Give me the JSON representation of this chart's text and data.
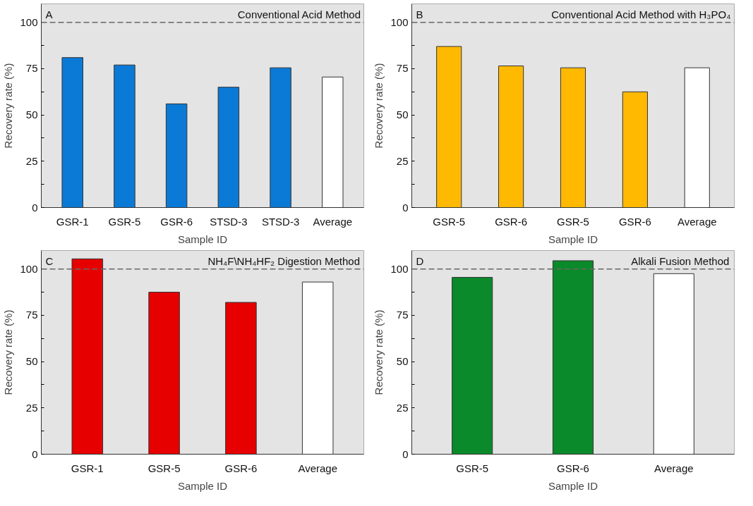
{
  "chart_data": [
    {
      "type": "bar",
      "title": "Conventional Acid Method",
      "annotations": [
        "A"
      ],
      "xlabel": "Sample ID",
      "ylabel": "Recovery rate (%)",
      "categories": [
        "GSR-1",
        "GSR-5",
        "GSR-6",
        "STSD-3",
        "STSD-3",
        "Average"
      ],
      "values": [
        81,
        77,
        56,
        65,
        75.5,
        70.5
      ],
      "colors": [
        "#0a7ad6",
        "#0a7ad6",
        "#0a7ad6",
        "#0a7ad6",
        "#0a7ad6",
        "#ffffff"
      ],
      "ylim": [
        0,
        110
      ],
      "yticks": [
        0,
        {
          "value": 12.5,
          "label": null
        },
        25,
        {
          "value": 37.5,
          "label": null
        },
        50,
        {
          "value": 62.5,
          "label": null
        },
        75,
        {
          "value": 87.5,
          "label": null
        },
        100
      ],
      "ref_lines": [
        {
          "axis": "y",
          "value": 100,
          "label": null,
          "color": "#666666",
          "line_style": "dashed"
        }
      ],
      "grid": false
    },
    {
      "type": "bar",
      "title": "Conventional Acid Method with H₃PO₄",
      "annotations": [
        "B"
      ],
      "xlabel": "Sample ID",
      "ylabel": "Recovery rate (%)",
      "categories": [
        "GSR-5",
        "GSR-6",
        "GSR-5",
        "GSR-6",
        "Average"
      ],
      "values": [
        87,
        76.5,
        75.5,
        62.5,
        75.5
      ],
      "colors": [
        "#ffb900",
        "#ffb900",
        "#ffb900",
        "#ffb900",
        "#ffffff"
      ],
      "ylim": [
        0,
        110
      ],
      "yticks": [
        0,
        {
          "value": 12.5,
          "label": null
        },
        25,
        {
          "value": 37.5,
          "label": null
        },
        50,
        {
          "value": 62.5,
          "label": null
        },
        75,
        {
          "value": 87.5,
          "label": null
        },
        100
      ],
      "ref_lines": [
        {
          "axis": "y",
          "value": 100,
          "label": null,
          "color": "#666666",
          "line_style": "dashed"
        }
      ],
      "grid": false
    },
    {
      "type": "bar",
      "title": "NH₄F\\NH₄HF₂ Digestion Method",
      "annotations": [
        "C"
      ],
      "xlabel": "Sample ID",
      "ylabel": "Recovery rate (%)",
      "categories": [
        "GSR-1",
        "GSR-5",
        "GSR-6",
        "Average"
      ],
      "values": [
        105.5,
        87.5,
        82,
        93
      ],
      "colors": [
        "#e60000",
        "#e60000",
        "#e60000",
        "#ffffff"
      ],
      "ylim": [
        0,
        110
      ],
      "yticks": [
        0,
        {
          "value": 12.5,
          "label": null
        },
        25,
        {
          "value": 37.5,
          "label": null
        },
        50,
        {
          "value": 62.5,
          "label": null
        },
        75,
        {
          "value": 87.5,
          "label": null
        },
        100
      ],
      "ref_lines": [
        {
          "axis": "y",
          "value": 100,
          "label": null,
          "color": "#666666",
          "line_style": "dashed"
        }
      ],
      "grid": false
    },
    {
      "type": "bar",
      "title": "Alkali Fusion Method",
      "annotations": [
        "D"
      ],
      "xlabel": "Sample ID",
      "ylabel": "Recovery rate (%)",
      "categories": [
        "GSR-5",
        "GSR-6",
        "Average"
      ],
      "values": [
        95.5,
        104.5,
        97.5
      ],
      "colors": [
        "#0a8a2a",
        "#0a8a2a",
        "#ffffff"
      ],
      "ylim": [
        0,
        110
      ],
      "yticks": [
        0,
        {
          "value": 12.5,
          "label": null
        },
        25,
        {
          "value": 37.5,
          "label": null
        },
        50,
        {
          "value": 62.5,
          "label": null
        },
        75,
        {
          "value": 87.5,
          "label": null
        },
        100
      ],
      "ref_lines": [
        {
          "axis": "y",
          "value": 100,
          "label": null,
          "color": "#666666",
          "line_style": "dashed"
        }
      ],
      "grid": false
    }
  ]
}
